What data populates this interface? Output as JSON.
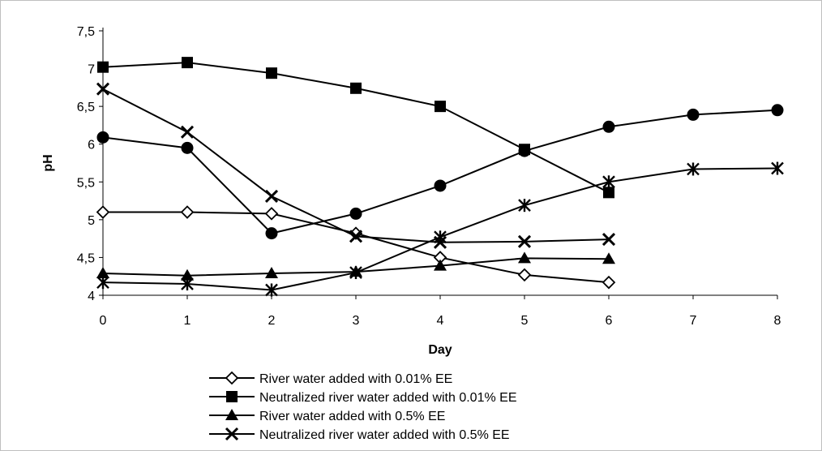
{
  "chart_data": {
    "type": "line",
    "title": "",
    "xlabel": "Day",
    "ylabel": "pH",
    "xlim": [
      0,
      8
    ],
    "ylim": [
      4,
      7.5
    ],
    "x_ticks": [
      "0",
      "1",
      "2",
      "3",
      "4",
      "5",
      "6",
      "7",
      "8"
    ],
    "y_ticks": [
      "4",
      "4,5",
      "5",
      "5,5",
      "6",
      "6,5",
      "7",
      "7,5"
    ],
    "grid": false,
    "legend_position": "bottom",
    "series": [
      {
        "name": "River water added with 0.01% EE",
        "marker": "diamond-open",
        "x": [
          0,
          1,
          2,
          3,
          4,
          5,
          6
        ],
        "y": [
          5.1,
          5.1,
          5.08,
          4.82,
          4.5,
          4.27,
          4.17
        ]
      },
      {
        "name": "Neutralized river water added with 0.01% EE",
        "marker": "square",
        "x": [
          0,
          1,
          2,
          3,
          4,
          5,
          6
        ],
        "y": [
          7.02,
          7.08,
          6.94,
          6.74,
          6.5,
          5.93,
          5.36
        ]
      },
      {
        "name": "River water added with 0.5% EE",
        "marker": "triangle",
        "x": [
          0,
          1,
          2,
          3,
          4,
          5,
          6
        ],
        "y": [
          4.29,
          4.26,
          4.29,
          4.31,
          4.39,
          4.49,
          4.48
        ]
      },
      {
        "name": "Neutralized river water added with 0.5% EE",
        "marker": "x",
        "x": [
          0,
          1,
          2,
          3,
          4,
          5,
          6
        ],
        "y": [
          6.73,
          6.16,
          5.31,
          4.78,
          4.7,
          4.71,
          4.74
        ]
      },
      {
        "name": "",
        "marker": "circle",
        "x": [
          0,
          1,
          2,
          3,
          4,
          5,
          6,
          7,
          8
        ],
        "y": [
          6.09,
          5.95,
          4.82,
          5.08,
          5.45,
          5.91,
          6.23,
          6.39,
          6.45
        ]
      },
      {
        "name": "",
        "marker": "star",
        "x": [
          0,
          1,
          2,
          3,
          4,
          5,
          6,
          7,
          8
        ],
        "y": [
          4.17,
          4.15,
          4.07,
          4.3,
          4.77,
          5.19,
          5.5,
          5.67,
          5.68
        ]
      }
    ]
  }
}
